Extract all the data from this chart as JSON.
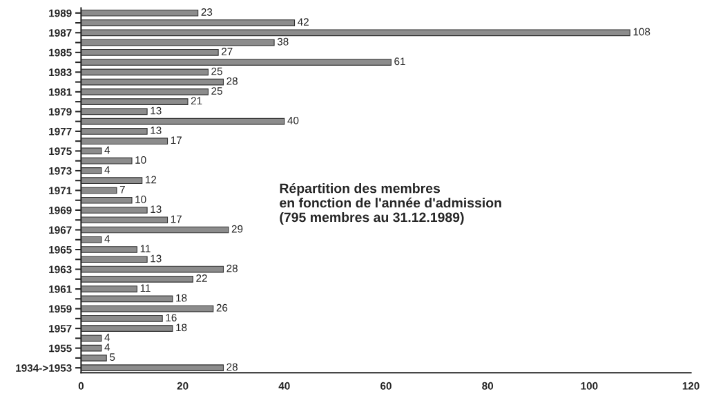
{
  "chart_data": {
    "type": "bar",
    "orientation": "horizontal",
    "title": "Répartition des membres\nen fonction de l'année d'admission\n(795 membres au 31.12.1989)",
    "categories": [
      "1989",
      null,
      "1987",
      null,
      "1985",
      null,
      "1983",
      null,
      "1981",
      null,
      "1979",
      null,
      "1977",
      null,
      "1975",
      null,
      "1973",
      null,
      "1971",
      null,
      "1969",
      null,
      "1967",
      null,
      "1965",
      null,
      "1963",
      null,
      "1961",
      null,
      "1959",
      null,
      "1957",
      null,
      "1955",
      null,
      "1934->1953"
    ],
    "values": [
      23,
      42,
      108,
      38,
      27,
      61,
      25,
      28,
      25,
      21,
      13,
      40,
      13,
      17,
      4,
      10,
      4,
      12,
      7,
      10,
      13,
      17,
      29,
      4,
      11,
      13,
      28,
      22,
      11,
      18,
      26,
      16,
      18,
      4,
      4,
      5,
      28
    ],
    "color": "#8c8c8c",
    "xlim": [
      0,
      120
    ],
    "xticks": [
      0,
      20,
      40,
      60,
      80,
      100,
      120
    ],
    "data_labels": true,
    "grid": false
  }
}
